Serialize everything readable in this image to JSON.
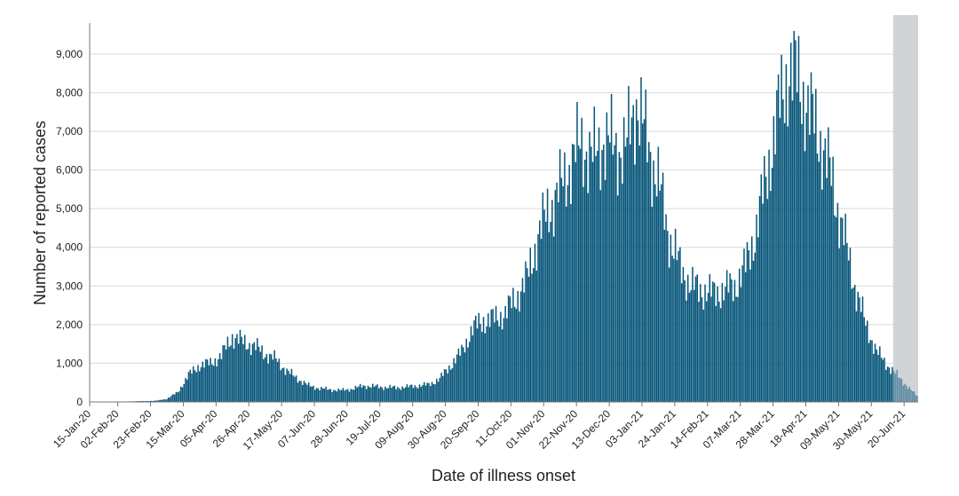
{
  "chart_data": {
    "type": "bar",
    "xlabel": "Date of illness onset",
    "ylabel": "Number of reported cases",
    "ylim": [
      0,
      9800
    ],
    "yticks": [
      0,
      1000,
      2000,
      3000,
      4000,
      5000,
      6000,
      7000,
      8000,
      9000
    ],
    "ytick_labels": [
      "0",
      "1,000",
      "2,000",
      "3,000",
      "4,000",
      "5,000",
      "6,000",
      "7,000",
      "8,000",
      "9,000"
    ],
    "x_start": "2020-01-15",
    "x_end": "2021-06-28",
    "xticks": [
      "15-Jan-20",
      "02-Feb-20",
      "23-Feb-20",
      "15-Mar-20",
      "05-Apr-20",
      "26-Apr-20",
      "17-May-20",
      "07-Jun-20",
      "28-Jun-20",
      "19-Jul-20",
      "09-Aug-20",
      "30-Aug-20",
      "20-Sep-20",
      "11-Oct-20",
      "01-Nov-20",
      "22-Nov-20",
      "13-Dec-20",
      "03-Jan-21",
      "24-Jan-21",
      "14-Feb-21",
      "07-Mar-21",
      "28-Mar-21",
      "18-Apr-21",
      "09-May-21",
      "30-May-21",
      "20-Jun-21"
    ],
    "shaded_region": {
      "from": "2021-06-13",
      "to": "2021-06-28"
    },
    "bar_color": "#045479",
    "shaded_color": "#d1d3d6",
    "grid": true,
    "series": [
      {
        "values_weekly_daily_average": [
          [
            "2020-01-15",
            5
          ],
          [
            "2020-02-05",
            10
          ],
          [
            "2020-02-26",
            30
          ],
          [
            "2020-03-04",
            80
          ],
          [
            "2020-03-11",
            250
          ],
          [
            "2020-03-18",
            700
          ],
          [
            "2020-03-25",
            950
          ],
          [
            "2020-04-01",
            1000
          ],
          [
            "2020-04-08",
            1200
          ],
          [
            "2020-04-15",
            1700
          ],
          [
            "2020-04-22",
            1550
          ],
          [
            "2020-04-29",
            1450
          ],
          [
            "2020-05-06",
            1250
          ],
          [
            "2020-05-13",
            1100
          ],
          [
            "2020-05-20",
            800
          ],
          [
            "2020-05-27",
            600
          ],
          [
            "2020-06-03",
            420
          ],
          [
            "2020-06-10",
            350
          ],
          [
            "2020-06-17",
            320
          ],
          [
            "2020-06-24",
            300
          ],
          [
            "2020-07-01",
            340
          ],
          [
            "2020-07-08",
            420
          ],
          [
            "2020-07-15",
            400
          ],
          [
            "2020-07-22",
            380
          ],
          [
            "2020-07-29",
            370
          ],
          [
            "2020-08-05",
            390
          ],
          [
            "2020-08-12",
            420
          ],
          [
            "2020-08-19",
            450
          ],
          [
            "2020-08-26",
            600
          ],
          [
            "2020-09-02",
            950
          ],
          [
            "2020-09-09",
            1300
          ],
          [
            "2020-09-16",
            1900
          ],
          [
            "2020-09-23",
            2100
          ],
          [
            "2020-09-30",
            2150
          ],
          [
            "2020-10-07",
            2300
          ],
          [
            "2020-10-14",
            2700
          ],
          [
            "2020-10-21",
            3200
          ],
          [
            "2020-10-28",
            4300
          ],
          [
            "2020-11-04",
            5000
          ],
          [
            "2020-11-11",
            5500
          ],
          [
            "2020-11-18",
            6200
          ],
          [
            "2020-11-25",
            6700
          ],
          [
            "2020-12-02",
            6300
          ],
          [
            "2020-12-09",
            6800
          ],
          [
            "2020-12-16",
            6600
          ],
          [
            "2020-12-23",
            6500
          ],
          [
            "2020-12-30",
            7800
          ],
          [
            "2021-01-06",
            6700
          ],
          [
            "2021-01-13",
            5700
          ],
          [
            "2021-01-20",
            4300
          ],
          [
            "2021-01-27",
            3500
          ],
          [
            "2021-02-03",
            3000
          ],
          [
            "2021-02-10",
            2900
          ],
          [
            "2021-02-17",
            2800
          ],
          [
            "2021-02-24",
            2900
          ],
          [
            "2021-03-03",
            3000
          ],
          [
            "2021-03-10",
            3500
          ],
          [
            "2021-03-17",
            4500
          ],
          [
            "2021-03-24",
            6000
          ],
          [
            "2021-03-31",
            7500
          ],
          [
            "2021-04-07",
            8700
          ],
          [
            "2021-04-14",
            8200
          ],
          [
            "2021-04-21",
            7400
          ],
          [
            "2021-04-28",
            6700
          ],
          [
            "2021-05-05",
            5600
          ],
          [
            "2021-05-12",
            4300
          ],
          [
            "2021-05-19",
            3000
          ],
          [
            "2021-05-26",
            2000
          ],
          [
            "2021-06-02",
            1300
          ],
          [
            "2021-06-09",
            950
          ],
          [
            "2021-06-16",
            650
          ],
          [
            "2021-06-23",
            350
          ],
          [
            "2021-06-28",
            150
          ]
        ]
      }
    ]
  }
}
